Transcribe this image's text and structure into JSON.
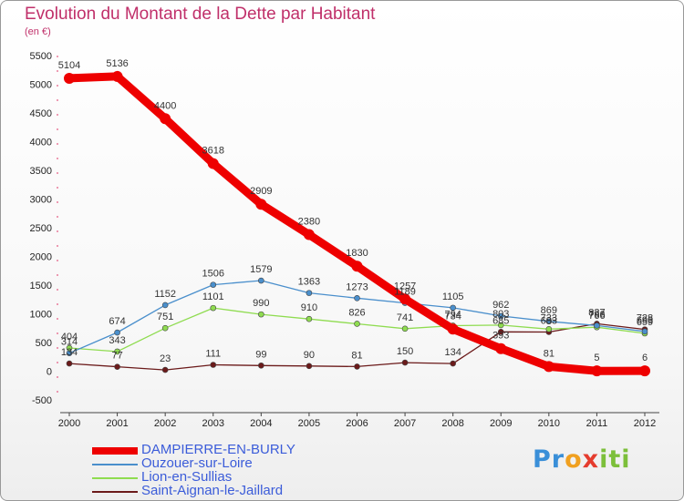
{
  "chart_data": {
    "type": "line",
    "title": "Evolution du Montant de la Dette par Habitant",
    "subtitle": "(en €)",
    "ylim": [
      -500,
      5500
    ],
    "yticks": [
      -500,
      0,
      500,
      1000,
      1500,
      2000,
      2500,
      3000,
      3500,
      4000,
      4500,
      5000,
      5500
    ],
    "x": [
      "2000",
      "2001",
      "2002",
      "2003",
      "2004",
      "2005",
      "2006",
      "2007",
      "2008",
      "2009",
      "2010",
      "2011",
      "2012"
    ],
    "grid": false,
    "legend_position": "bottom-left",
    "series": [
      {
        "name": "DAMPIERRE-EN-BURLY",
        "color": "#ee0000",
        "values": [
          5104,
          5136,
          4400,
          3618,
          2909,
          2380,
          1830,
          1257,
          734,
          393,
          81,
          5,
          6
        ]
      },
      {
        "name": "Ouzouer-sur-Loire",
        "color": "#4a8fcc",
        "values": [
          314,
          674,
          1152,
          1506,
          1579,
          1363,
          1273,
          1189,
          1105,
          962,
          869,
          796,
          693
        ]
      },
      {
        "name": "Lion-en-Sullias",
        "color": "#8fdc50",
        "values": [
          404,
          343,
          751,
          1101,
          990,
          910,
          826,
          741,
          794,
          803,
          733,
          766,
          659
        ]
      },
      {
        "name": "Saint-Aignan-le-Jaillard",
        "color": "#6b1a1a",
        "values": [
          134,
          77,
          23,
          111,
          99,
          90,
          81,
          150,
          134,
          685,
          683,
          827,
          728
        ]
      }
    ]
  },
  "logo": {
    "p1": "Pr",
    "p2": "o",
    "p3": "x",
    "p4": "iti"
  }
}
